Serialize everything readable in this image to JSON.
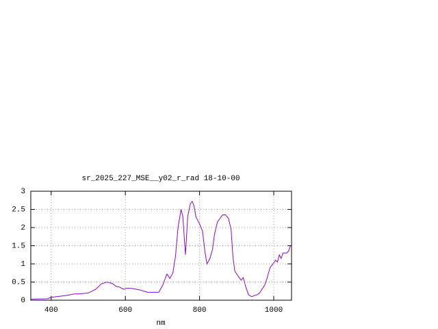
{
  "chart_data": {
    "type": "line",
    "title": "sr_2025_227_MSE__y02_r_rad 18-10-00",
    "x_label": "nm",
    "x": [
      345,
      390,
      400,
      440,
      460,
      480,
      500,
      520,
      535,
      550,
      565,
      575,
      585,
      595,
      605,
      620,
      640,
      660,
      690,
      700,
      712,
      720,
      728,
      735,
      742,
      750,
      755,
      762,
      768,
      775,
      780,
      785,
      790,
      800,
      808,
      815,
      820,
      828,
      835,
      840,
      848,
      855,
      862,
      870,
      878,
      885,
      890,
      895,
      905,
      912,
      918,
      925,
      932,
      940,
      955,
      962,
      968,
      975,
      982,
      990,
      998,
      1005,
      1010,
      1015,
      1020,
      1025,
      1035,
      1040,
      1045
    ],
    "values": [
      0.03,
      0.04,
      0.08,
      0.13,
      0.17,
      0.18,
      0.2,
      0.3,
      0.45,
      0.5,
      0.46,
      0.38,
      0.36,
      0.3,
      0.33,
      0.32,
      0.28,
      0.22,
      0.22,
      0.4,
      0.72,
      0.6,
      0.75,
      1.2,
      2.0,
      2.5,
      2.3,
      1.25,
      2.3,
      2.65,
      2.72,
      2.6,
      2.3,
      2.1,
      1.9,
      1.3,
      1.0,
      1.15,
      1.4,
      1.8,
      2.15,
      2.25,
      2.35,
      2.35,
      2.25,
      1.95,
      1.2,
      0.8,
      0.65,
      0.55,
      0.62,
      0.35,
      0.15,
      0.1,
      0.15,
      0.2,
      0.3,
      0.4,
      0.6,
      0.9,
      1.0,
      1.1,
      1.05,
      1.25,
      1.15,
      1.3,
      1.3,
      1.35,
      1.5
    ],
    "color": "#9400d3",
    "xlim": [
      345,
      1048
    ],
    "xticks": [
      400,
      600,
      800,
      1000
    ],
    "ylim": [
      0,
      3
    ],
    "yticks": [
      0,
      0.5,
      1,
      1.5,
      2,
      2.5,
      3
    ],
    "grid": true
  }
}
